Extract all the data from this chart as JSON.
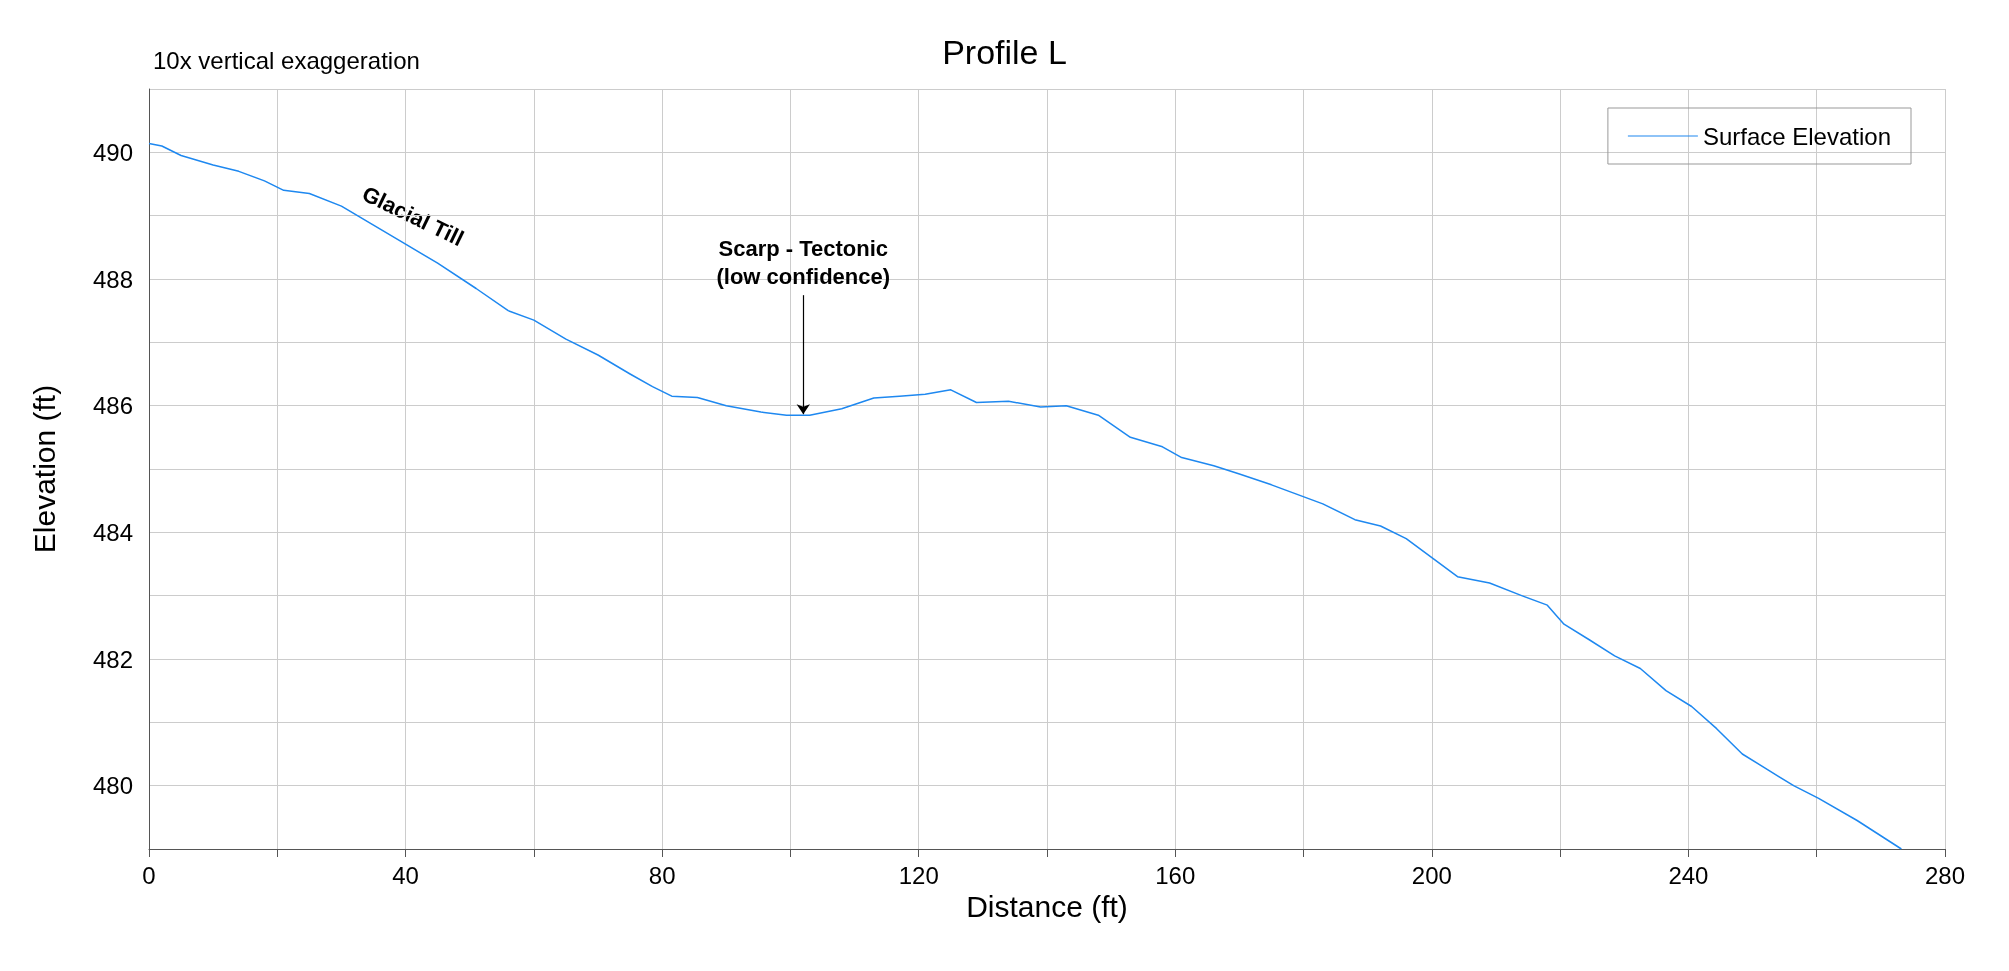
{
  "chart_data": {
    "type": "line",
    "title": "Profile L",
    "xlabel": "Distance (ft)",
    "ylabel": "Elevation (ft)",
    "x": [
      0,
      2,
      5,
      10,
      14,
      18,
      21,
      25,
      30,
      35,
      40,
      45,
      51,
      56,
      60,
      65,
      70,
      75,
      78.5,
      81.5,
      85.5,
      90,
      95.4,
      99.4,
      103,
      108,
      113,
      117,
      121,
      125,
      129,
      134,
      139,
      143,
      148,
      153,
      158,
      161,
      166,
      170,
      175,
      179,
      183,
      188,
      192,
      196,
      200,
      204,
      209,
      214,
      218,
      220.6,
      224.6,
      228.5,
      232.5,
      236.5,
      240.5,
      244.4,
      248.4,
      252.4,
      256.4,
      260.3,
      266.3,
      273.2
    ],
    "series": [
      {
        "name": "Surface Elevation",
        "color": "#1e88f0",
        "values": [
          490.14,
          490.1,
          489.95,
          489.8,
          489.7,
          489.55,
          489.4,
          489.35,
          489.15,
          488.85,
          488.55,
          488.25,
          487.85,
          487.5,
          487.35,
          487.05,
          486.8,
          486.5,
          486.3,
          486.15,
          486.13,
          486.0,
          485.9,
          485.85,
          485.85,
          485.95,
          486.12,
          486.15,
          486.18,
          486.25,
          486.05,
          486.07,
          485.98,
          486.0,
          485.85,
          485.5,
          485.35,
          485.18,
          485.05,
          484.92,
          484.75,
          484.6,
          484.45,
          484.2,
          484.1,
          483.9,
          483.6,
          483.3,
          483.2,
          483.0,
          482.85,
          482.55,
          482.3,
          482.05,
          481.85,
          481.5,
          481.25,
          480.9,
          480.5,
          480.25,
          480.0,
          479.8,
          479.45,
          479.0
        ]
      }
    ],
    "xlim": [
      0,
      280
    ],
    "xticks": [
      0,
      {
        "value": 20,
        "label": null
      },
      40,
      {
        "value": 60,
        "label": null
      },
      80,
      {
        "value": 100,
        "label": null
      },
      120,
      {
        "value": 140,
        "label": null
      },
      160,
      {
        "value": 180,
        "label": null
      },
      200,
      {
        "value": 220,
        "label": null
      },
      240,
      {
        "value": 260,
        "label": null
      },
      280
    ],
    "ylim": [
      479,
      491
    ],
    "yticks": [
      {
        "value": 479,
        "label": null
      },
      480,
      {
        "value": 481,
        "label": null
      },
      482,
      {
        "value": 483,
        "label": null
      },
      484,
      {
        "value": 485,
        "label": null
      },
      486,
      {
        "value": 487,
        "label": null
      },
      488,
      {
        "value": 489,
        "label": null
      },
      490,
      {
        "value": 491,
        "label": null
      }
    ],
    "grid": true,
    "legend": "top right",
    "marker": "none",
    "line_style": "solid",
    "annotations": [
      "10x vertical exaggeration",
      "Glacial Till",
      {
        "text": "Scarp - Tectonic\n(low confidence)",
        "x": 102,
        "y": 485.85
      }
    ]
  }
}
